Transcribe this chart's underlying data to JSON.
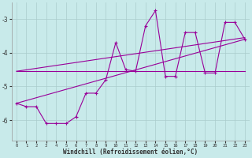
{
  "x": [
    0,
    1,
    2,
    3,
    4,
    5,
    6,
    7,
    8,
    9,
    10,
    11,
    12,
    13,
    14,
    15,
    16,
    17,
    18,
    19,
    20,
    21,
    22,
    23
  ],
  "y_main": [
    -5.5,
    -5.6,
    -5.6,
    -6.1,
    -6.1,
    -6.1,
    -5.9,
    -5.2,
    -5.2,
    -4.8,
    -3.7,
    -4.5,
    -4.55,
    -3.2,
    -2.75,
    -4.7,
    -4.7,
    -3.4,
    -3.4,
    -4.6,
    -4.6,
    -3.1,
    -3.1,
    -3.6
  ],
  "y_line1_x": [
    0,
    23
  ],
  "y_line1_y": [
    -4.55,
    -4.55
  ],
  "y_line2_x": [
    0,
    23
  ],
  "y_line2_y": [
    -4.55,
    -3.55
  ],
  "y_line3_x": [
    0,
    23
  ],
  "y_line3_y": [
    -5.5,
    -3.6
  ],
  "background_color": "#c8eaea",
  "line_color": "#990099",
  "grid_color": "#aacccc",
  "tick_color": "#333333",
  "yticks": [
    -6,
    -5,
    -4,
    -3
  ],
  "ylim": [
    -6.6,
    -2.5
  ],
  "xlim": [
    -0.5,
    23.5
  ],
  "xlabel": "Windchill (Refroidissement éolien,°C)"
}
